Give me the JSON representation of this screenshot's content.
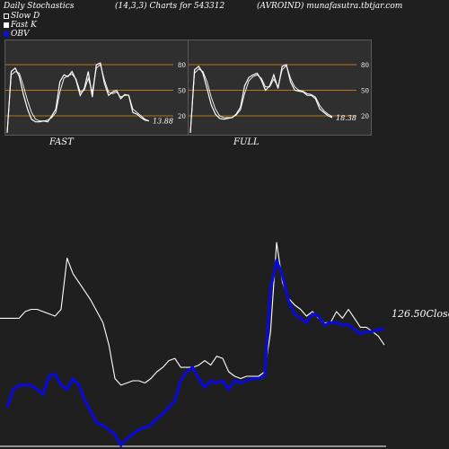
{
  "header": {
    "title": "Daily Stochastics",
    "params": "(14,3,3) Charts for 543312",
    "site": "(AVROIND) munafasutra.tbtjar.com"
  },
  "legend": [
    {
      "label": "Slow  D",
      "color": "#ffffff",
      "style": "outline"
    },
    {
      "label": "Fast K",
      "color": "#ffffff",
      "style": "outline"
    },
    {
      "label": "OBV",
      "color": "#1010d0",
      "style": "filled"
    }
  ],
  "colors": {
    "background": "#1f1f1f",
    "panel": "#2f2f2f",
    "levels": "#b07818",
    "stoch": "#ffffff",
    "obv": "#0a0ad6",
    "price": "#ffffff"
  },
  "chart_data": [
    {
      "type": "line",
      "panel": "FAST",
      "title": "FAST",
      "ylim": [
        0,
        100
      ],
      "yticks": [
        20,
        50,
        80
      ],
      "levels": [
        20,
        50,
        80
      ],
      "last_value_label": "13.88",
      "series": [
        {
          "values": [
            0,
            72,
            76,
            66,
            45,
            28,
            16,
            13,
            13,
            14,
            13,
            20,
            28,
            60,
            68,
            66,
            72,
            62,
            44,
            52,
            72,
            42,
            80,
            82,
            58,
            44,
            48,
            50,
            40,
            45,
            44,
            24,
            22,
            18,
            15,
            14
          ]
        },
        {
          "values": [
            0,
            68,
            72,
            70,
            55,
            38,
            24,
            16,
            14,
            14,
            15,
            18,
            24,
            48,
            64,
            67,
            69,
            63,
            48,
            50,
            64,
            48,
            76,
            80,
            62,
            48,
            46,
            48,
            42,
            44,
            44,
            28,
            24,
            20,
            16,
            14
          ]
        }
      ]
    },
    {
      "type": "line",
      "panel": "FULL",
      "title": "FULL",
      "ylim": [
        0,
        100
      ],
      "yticks": [
        20,
        50,
        80
      ],
      "levels": [
        20,
        50,
        80
      ],
      "last_value_label": "18.38",
      "series": [
        {
          "values": [
            0,
            74,
            78,
            70,
            52,
            33,
            22,
            17,
            16,
            17,
            18,
            22,
            30,
            55,
            65,
            68,
            70,
            62,
            50,
            55,
            68,
            52,
            78,
            80,
            60,
            50,
            49,
            48,
            44,
            44,
            40,
            28,
            24,
            20,
            18
          ]
        },
        {
          "values": [
            0,
            70,
            75,
            72,
            60,
            42,
            28,
            20,
            18,
            18,
            18,
            21,
            27,
            46,
            61,
            66,
            68,
            64,
            54,
            54,
            63,
            54,
            74,
            79,
            64,
            54,
            50,
            49,
            46,
            45,
            42,
            32,
            26,
            22,
            19
          ]
        }
      ]
    },
    {
      "type": "line",
      "panel": "price-obv",
      "close_label": "126.50Close",
      "series": [
        {
          "values": [
            152,
            152,
            152,
            155,
            156,
            156,
            155,
            154,
            153,
            156,
            179,
            172,
            168,
            164,
            160,
            155,
            150,
            140,
            125,
            122,
            123,
            124,
            124,
            123,
            125,
            128,
            130,
            133,
            134,
            130,
            130,
            130,
            131,
            133,
            131,
            135,
            134,
            128,
            126,
            125,
            126,
            126,
            126,
            128,
            146,
            186,
            168,
            161,
            158,
            156,
            153,
            155,
            152,
            150,
            150,
            155,
            152,
            156,
            152,
            148,
            148,
            146,
            144,
            140
          ]
        },
        {
          "values": [
            112,
            120,
            122,
            122,
            122,
            120,
            118,
            126,
            127,
            122,
            120,
            125,
            122,
            115,
            110,
            105,
            104,
            102,
            100,
            95,
            98,
            100,
            102,
            103,
            104,
            107,
            109,
            112,
            115,
            124,
            128,
            130,
            125,
            121,
            124,
            123,
            124,
            120,
            124,
            123,
            124,
            125,
            125,
            126,
            165,
            178,
            171,
            160,
            154,
            152,
            150,
            154,
            153,
            149,
            150,
            150,
            149,
            149,
            147,
            145,
            146,
            146,
            147,
            147
          ]
        }
      ]
    }
  ]
}
